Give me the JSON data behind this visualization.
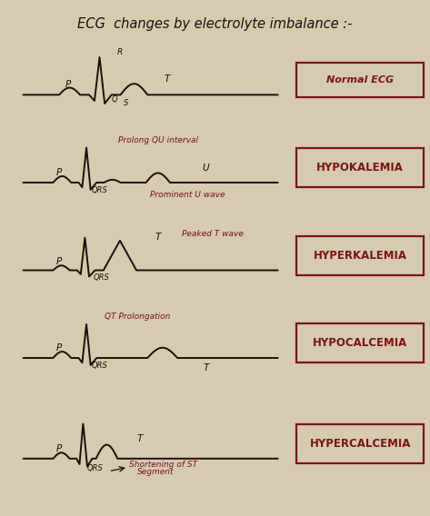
{
  "title": "ECG  changes by electrolyte imbalance :-",
  "background_color": "#d6caaf",
  "line_color": "#1a1008",
  "text_color": "#7a1515",
  "label_color": "#1a1008",
  "box_text_color": "#7a1515",
  "box_edge_color": "#7a1515",
  "rows": [
    {
      "label": "Normal ECG",
      "annotation_label": "",
      "sub_annotations": [],
      "wave_type": "normal",
      "wave_labels": {
        "P": [
          1.5,
          0.19
        ],
        "R": [
          3.22,
          1.02
        ],
        "Q": [
          3.05,
          -0.18
        ],
        "S": [
          3.42,
          -0.26
        ],
        "T": [
          4.8,
          0.32
        ]
      }
    },
    {
      "label": "HYPOKALEMIA",
      "annotation_label": "Prolong QU interval",
      "sub_annotations": [
        "Prominent U wave"
      ],
      "wave_type": "hypokalemia",
      "wave_labels": {
        "P": [
          1.2,
          0.18
        ],
        "QRS": [
          2.55,
          -0.25
        ],
        "U": [
          6.1,
          0.29
        ]
      }
    },
    {
      "label": "HYPERKALEMIA",
      "annotation_label": "Peaked T wave",
      "sub_annotations": [],
      "wave_type": "hyperkalemia",
      "wave_labels": {
        "P": [
          1.2,
          0.15
        ],
        "QRS": [
          2.6,
          -0.25
        ],
        "T": [
          4.5,
          0.78
        ]
      }
    },
    {
      "label": "HYPOCALCEMIA",
      "annotation_label": "QT Prolongation",
      "sub_annotations": [],
      "wave_type": "hypocalcemia",
      "wave_labels": {
        "P": [
          1.2,
          0.18
        ],
        "QRS": [
          2.55,
          -0.25
        ],
        "T": [
          6.1,
          -0.32
        ]
      }
    },
    {
      "label": "HYPERCALCEMIA",
      "annotation_label": "Shortening of ST",
      "sub_annotations": [
        "Segment"
      ],
      "wave_type": "hypercalcemia",
      "wave_labels": {
        "P": [
          1.2,
          0.18
        ],
        "QRS": [
          2.4,
          -0.3
        ],
        "T": [
          3.9,
          0.44
        ]
      }
    }
  ]
}
